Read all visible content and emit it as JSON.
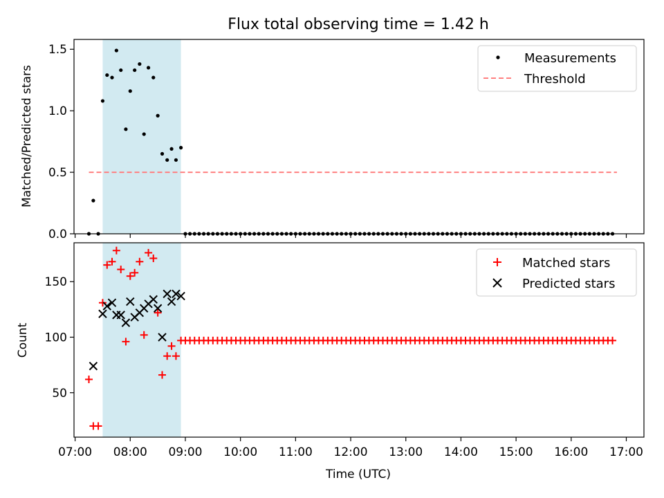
{
  "chart_data": [
    {
      "type": "scatter",
      "title": "Flux total observing time = 1.42 h",
      "xlabel": "",
      "ylabel": "Matched/Predicted stars",
      "ylim": [
        0,
        1.58
      ],
      "yticks": [
        0.0,
        0.5,
        1.0,
        1.5
      ],
      "ytick_labels": [
        "0.0",
        "0.5",
        "1.0",
        "1.5"
      ],
      "highlight_span": {
        "start": 7.5,
        "end": 8.92,
        "color": "#add8e6"
      },
      "series": [
        {
          "name": "Measurements",
          "marker": "dot",
          "color": "#000000",
          "x": [
            7.25,
            7.33,
            7.42,
            7.5,
            7.58,
            7.67,
            7.75,
            7.83,
            7.92,
            8.0,
            8.08,
            8.17,
            8.25,
            8.33,
            8.42,
            8.5,
            8.58,
            8.67,
            8.75,
            8.83,
            8.92
          ],
          "y": [
            0.0,
            0.27,
            0.0,
            1.08,
            1.29,
            1.27,
            1.49,
            1.33,
            0.85,
            1.16,
            1.33,
            1.38,
            0.81,
            1.35,
            1.27,
            0.96,
            0.65,
            0.6,
            0.69,
            0.6,
            0.7
          ],
          "tail": {
            "from": 9.0,
            "to": 16.83,
            "step": 0.08333,
            "value": 0.0
          }
        },
        {
          "name": "Threshold",
          "marker": "dashed-line",
          "color": "#ff7f7f",
          "x": [
            7.25,
            16.83
          ],
          "y": [
            0.5,
            0.5
          ]
        }
      ],
      "legend": {
        "location": "upper right",
        "entries": [
          "Measurements",
          "Threshold"
        ]
      }
    },
    {
      "type": "scatter",
      "title": "",
      "xlabel": "Time (UTC)",
      "ylabel": "Count",
      "ylim": [
        10,
        185
      ],
      "yticks": [
        50,
        100,
        150
      ],
      "ytick_labels": [
        "50",
        "100",
        "150"
      ],
      "xlim": [
        6.98,
        17.32
      ],
      "xticks": [
        7,
        8,
        9,
        10,
        11,
        12,
        13,
        14,
        15,
        16,
        17
      ],
      "xtick_labels": [
        "07:00",
        "08:00",
        "09:00",
        "10:00",
        "11:00",
        "12:00",
        "13:00",
        "14:00",
        "15:00",
        "16:00",
        "17:00"
      ],
      "highlight_span": {
        "start": 7.5,
        "end": 8.92,
        "color": "#add8e6"
      },
      "series": [
        {
          "name": "Matched stars",
          "marker": "plus",
          "color": "#ff0000",
          "x": [
            7.25,
            7.33,
            7.42,
            7.5,
            7.58,
            7.67,
            7.75,
            7.83,
            7.92,
            8.0,
            8.08,
            8.17,
            8.25,
            8.33,
            8.42,
            8.5,
            8.58,
            8.67,
            8.75,
            8.83,
            8.92
          ],
          "y": [
            62,
            20,
            20,
            131,
            165,
            168,
            178,
            161,
            96,
            155,
            158,
            168,
            102,
            176,
            171,
            122,
            66,
            83,
            92,
            83,
            97
          ],
          "tail": {
            "from": 9.0,
            "to": 16.83,
            "step": 0.08333,
            "value": 97
          }
        },
        {
          "name": "Predicted stars",
          "marker": "x",
          "color": "#000000",
          "x": [
            7.33,
            7.5,
            7.58,
            7.67,
            7.75,
            7.83,
            7.92,
            8.0,
            8.08,
            8.17,
            8.25,
            8.33,
            8.42,
            8.5,
            8.58,
            8.67,
            8.75,
            8.83,
            8.92
          ],
          "y": [
            74,
            121,
            128,
            131,
            120,
            120,
            113,
            132,
            118,
            122,
            126,
            130,
            134,
            126,
            100,
            139,
            132,
            139,
            137
          ]
        }
      ],
      "legend": {
        "location": "upper right",
        "entries": [
          "Matched stars",
          "Predicted stars"
        ]
      }
    }
  ]
}
